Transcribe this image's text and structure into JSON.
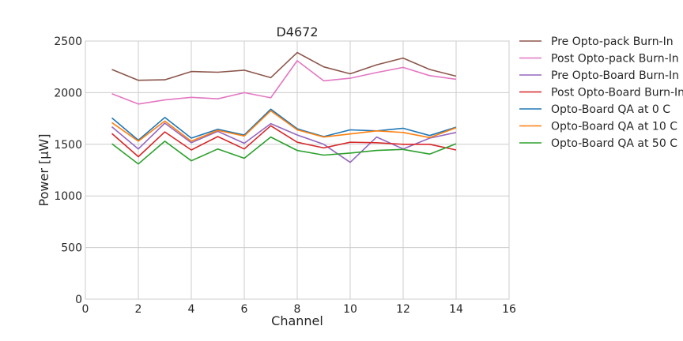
{
  "chart_data": {
    "type": "line",
    "title": "D4672",
    "xlabel": "Channel",
    "ylabel": "Power [μW]",
    "xlim": [
      0,
      16
    ],
    "ylim": [
      0,
      2500
    ],
    "xticks": [
      0,
      2,
      4,
      6,
      8,
      10,
      12,
      14,
      16
    ],
    "yticks": [
      0,
      500,
      1000,
      1500,
      2000,
      2500
    ],
    "grid": true,
    "legend_position": "outside-right",
    "x": [
      1,
      2,
      3,
      4,
      5,
      6,
      7,
      8,
      9,
      10,
      11,
      12,
      13,
      14
    ],
    "series": [
      {
        "name": "Pre Opto-pack Burn-In",
        "color": "#8c564b",
        "values": [
          2225,
          2120,
          2125,
          2205,
          2198,
          2218,
          2145,
          2388,
          2250,
          2183,
          2270,
          2335,
          2225,
          2160
        ]
      },
      {
        "name": "Post Opto-pack Burn-In",
        "color": "#e377c2",
        "values": [
          1990,
          1890,
          1930,
          1955,
          1940,
          2000,
          1950,
          2310,
          2115,
          2140,
          2195,
          2245,
          2165,
          2130
        ]
      },
      {
        "name": "Pre Opto-Board Burn-In",
        "color": "#9467bd",
        "values": [
          1670,
          1455,
          1705,
          1515,
          1625,
          1510,
          1700,
          1590,
          1500,
          1325,
          1570,
          1455,
          1560,
          1615
        ]
      },
      {
        "name": "Post Opto-Board Burn-In",
        "color": "#d62728",
        "values": [
          1605,
          1380,
          1620,
          1445,
          1575,
          1455,
          1680,
          1520,
          1465,
          1520,
          1515,
          1500,
          1500,
          1445
        ]
      },
      {
        "name": "Opto-Board QA at 0 C",
        "color": "#1f77b4",
        "values": [
          1755,
          1540,
          1760,
          1560,
          1645,
          1590,
          1840,
          1650,
          1575,
          1640,
          1630,
          1655,
          1585,
          1665
        ]
      },
      {
        "name": "Opto-Board QA at 10 C",
        "color": "#ff7f0e",
        "values": [
          1710,
          1530,
          1725,
          1530,
          1635,
          1580,
          1825,
          1640,
          1570,
          1600,
          1630,
          1615,
          1565,
          1660
        ]
      },
      {
        "name": "Opto-Board QA at 50 C",
        "color": "#2ca02c",
        "values": [
          1505,
          1310,
          1530,
          1340,
          1455,
          1365,
          1570,
          1440,
          1395,
          1415,
          1440,
          1450,
          1405,
          1505
        ]
      }
    ]
  }
}
